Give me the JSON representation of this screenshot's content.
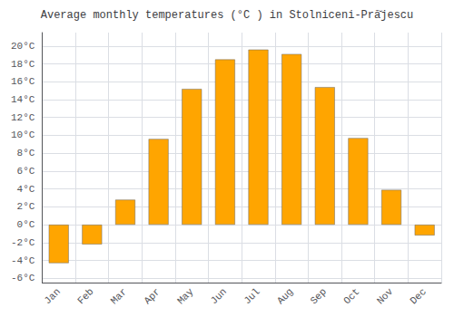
{
  "chart_data": {
    "type": "bar",
    "title": "Average monthly temperatures (°C ) in Stolniceni-Pră̆jescu",
    "categories": [
      "Jan",
      "Feb",
      "Mar",
      "Apr",
      "May",
      "Jun",
      "Jul",
      "Aug",
      "Sep",
      "Oct",
      "Nov",
      "Dec"
    ],
    "values": [
      -4.3,
      -2.2,
      2.8,
      9.6,
      15.2,
      18.5,
      19.6,
      19.1,
      15.4,
      9.7,
      3.9,
      -1.2
    ],
    "color": "#FFA500",
    "ylim": [
      -6.5,
      21.5
    ],
    "yticks": [
      {
        "value": -6,
        "label": "-6°C"
      },
      {
        "value": -4,
        "label": "-4°C"
      },
      {
        "value": -2,
        "label": "-2°C"
      },
      {
        "value": 0,
        "label": "0°C"
      },
      {
        "value": 2,
        "label": "2°C"
      },
      {
        "value": 4,
        "label": "4°C"
      },
      {
        "value": 6,
        "label": "6°C"
      },
      {
        "value": 8,
        "label": "8°C"
      },
      {
        "value": 10,
        "label": "10°C"
      },
      {
        "value": 12,
        "label": "12°C"
      },
      {
        "value": 14,
        "label": "14°C"
      },
      {
        "value": 16,
        "label": "16°C"
      },
      {
        "value": 18,
        "label": "18°C"
      },
      {
        "value": 20,
        "label": "20°C"
      }
    ],
    "grid": true
  }
}
